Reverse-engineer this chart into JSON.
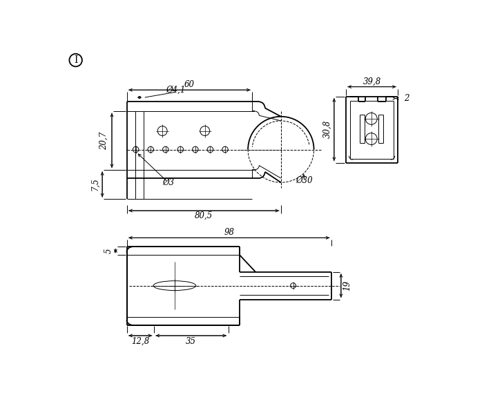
{
  "bg_color": "#ffffff",
  "lc": "#000000",
  "lw": 1.3,
  "lw_t": 0.7,
  "lw_d": 0.7,
  "annotations": {
    "dim_60": "60",
    "dim_phi4_1": "Ø4,1",
    "dim_80_5": "80,5",
    "dim_20_7": "20,7",
    "dim_7_5": "7,5",
    "dim_phi3": "Ø3",
    "dim_phi30": "Ø30",
    "dim_39_8": "39,8",
    "dim_2": "2",
    "dim_30_8": "30,8",
    "dim_98": "98",
    "dim_5": "5",
    "dim_19": "19",
    "dim_12_8": "12,8",
    "dim_35": "35",
    "label_I": "I"
  }
}
